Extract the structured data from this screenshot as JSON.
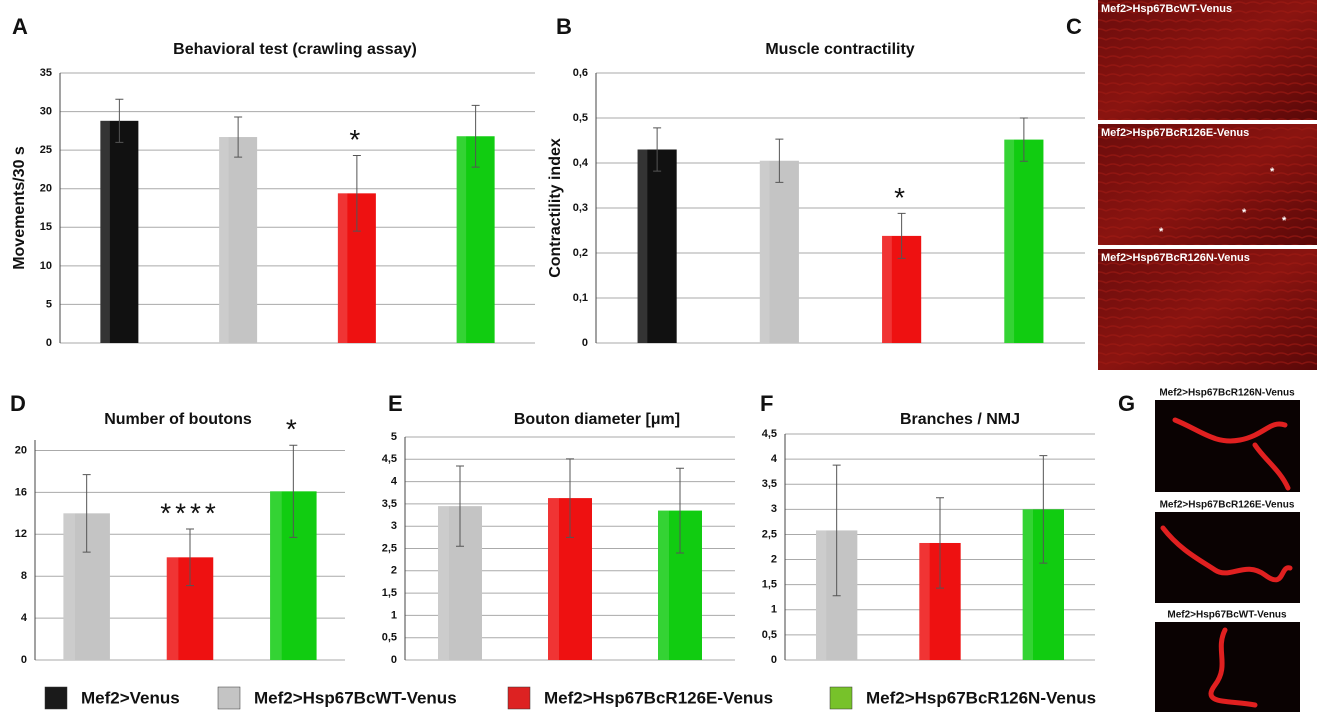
{
  "chart_data": [
    {
      "type": "bar",
      "panel": "A",
      "title": "Behavioral test (crawling assay)",
      "y_label": "Movements/30 s",
      "categories": [
        null,
        null,
        null,
        null
      ],
      "values": [
        28.8,
        26.7,
        19.4,
        26.8
      ],
      "errors": [
        2.8,
        2.6,
        4.9,
        4.0
      ],
      "significance": [
        null,
        null,
        "*",
        null
      ],
      "colors": [
        "#111111",
        "#c4c4c4",
        "#ee1111",
        "#11cc11"
      ],
      "ylim": [
        0,
        35
      ],
      "yticks": [
        0,
        5,
        10,
        15,
        20,
        25,
        30,
        35
      ],
      "grid": true
    },
    {
      "type": "bar",
      "panel": "B",
      "title": "Muscle contractility",
      "y_label": "Contractility index",
      "categories": [
        null,
        null,
        null,
        null
      ],
      "values": [
        0.43,
        0.405,
        0.238,
        0.452
      ],
      "errors": [
        0.048,
        0.048,
        0.05,
        0.048
      ],
      "significance": [
        null,
        null,
        "*",
        null
      ],
      "colors": [
        "#111111",
        "#c4c4c4",
        "#ee1111",
        "#11cc11"
      ],
      "ylim": [
        0,
        0.6
      ],
      "yticks": [
        0,
        {
          "value": 0.1,
          "label": "0,1"
        },
        {
          "value": 0.2,
          "label": "0,2"
        },
        {
          "value": 0.3,
          "label": "0,3"
        },
        {
          "value": 0.4,
          "label": "0,4"
        },
        {
          "value": 0.5,
          "label": "0,5"
        },
        {
          "value": 0.6,
          "label": "0,6"
        }
      ],
      "grid": true
    },
    {
      "type": "bar",
      "panel": "D",
      "title": "Number of boutons",
      "categories": [
        null,
        null,
        null
      ],
      "values": [
        14.0,
        9.8,
        16.1
      ],
      "errors": [
        3.7,
        2.7,
        4.4
      ],
      "significance": [
        null,
        "****",
        "*"
      ],
      "colors": [
        "#c4c4c4",
        "#ee1111",
        "#11cc11"
      ],
      "ylim": [
        0,
        21
      ],
      "yticks": [
        0,
        4,
        8,
        12,
        16,
        20
      ],
      "grid": true
    },
    {
      "type": "bar",
      "panel": "E",
      "title": "Bouton diameter [μm]",
      "categories": [
        null,
        null,
        null
      ],
      "values": [
        3.45,
        3.63,
        3.35
      ],
      "errors": [
        0.9,
        0.88,
        0.95
      ],
      "colors": [
        "#c4c4c4",
        "#ee1111",
        "#11cc11"
      ],
      "ylim": [
        0,
        5
      ],
      "yticks": [
        0,
        {
          "value": 0.5,
          "label": "0,5"
        },
        1,
        {
          "value": 1.5,
          "label": "1,5"
        },
        2,
        {
          "value": 2.5,
          "label": "2,5"
        },
        3,
        {
          "value": 3.5,
          "label": "3,5"
        },
        4,
        {
          "value": 4.5,
          "label": "4,5"
        },
        5
      ],
      "grid": true
    },
    {
      "type": "bar",
      "panel": "F",
      "title": "Branches / NMJ",
      "categories": [
        null,
        null,
        null
      ],
      "values": [
        2.58,
        2.33,
        3.0
      ],
      "errors": [
        1.3,
        0.9,
        1.07
      ],
      "colors": [
        "#c4c4c4",
        "#ee1111",
        "#11cc11"
      ],
      "ylim": [
        0,
        4.5
      ],
      "yticks": [
        0,
        {
          "value": 0.5,
          "label": "0,5"
        },
        1,
        {
          "value": 1.5,
          "label": "1,5"
        },
        2,
        {
          "value": 2.5,
          "label": "2,5"
        },
        3,
        {
          "value": 3.5,
          "label": "3,5"
        },
        4,
        {
          "value": 4.5,
          "label": "4,5"
        }
      ],
      "grid": true
    }
  ],
  "images": {
    "C": {
      "panel": "C",
      "captions": [
        "Mef2>Hsp67BcWT-Venus",
        "Mef2>Hsp67BcR126E-Venus",
        "Mef2>Hsp67BcR126N-Venus"
      ],
      "marks": [
        "*",
        "*",
        "*",
        "*"
      ]
    },
    "G": {
      "panel": "G",
      "captions": [
        "Mef2>Hsp67BcR126N-Venus",
        "Mef2>Hsp67BcR126E-Venus",
        "Mef2>Hsp67BcWT-Venus"
      ]
    }
  },
  "legend": [
    {
      "name": "Mef2>Venus",
      "color": "#1a1a1a"
    },
    {
      "name": "Mef2>Hsp67BcWT-Venus",
      "color": "#c4c4c4"
    },
    {
      "name": "Mef2>Hsp67BcR126E-Venus",
      "color": "#dd2222"
    },
    {
      "name": "Mef2>Hsp67BcR126N-Venus",
      "color": "#77c22a"
    }
  ]
}
